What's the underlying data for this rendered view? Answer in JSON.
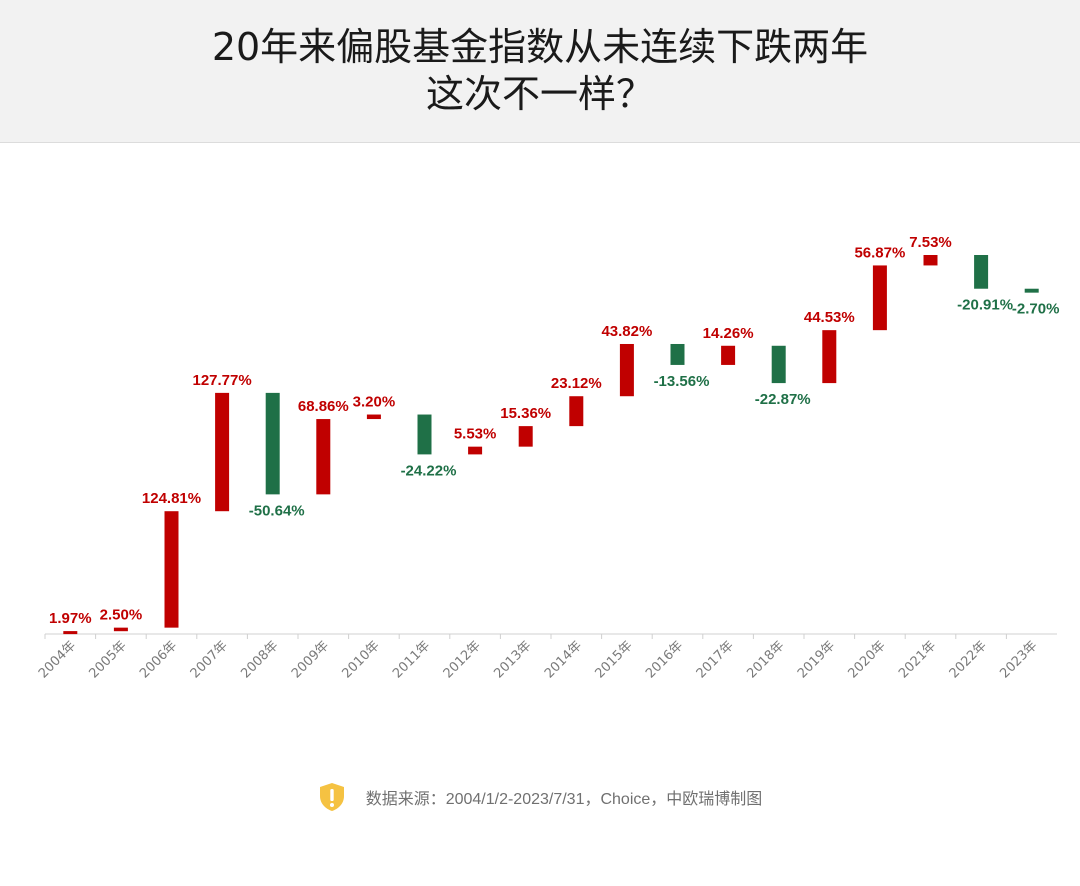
{
  "header": {
    "title_line1": "20年来偏股基金指数从未连续下跌两年",
    "title_line2": "这次不一样？"
  },
  "chart_data": {
    "type": "waterfall",
    "title": "20年来偏股基金指数从未连续下跌两年 这次不一样？",
    "categories": [
      "2004年",
      "2005年",
      "2006年",
      "2007年",
      "2008年",
      "2009年",
      "2010年",
      "2011年",
      "2012年",
      "2013年",
      "2014年",
      "2015年",
      "2016年",
      "2017年",
      "2018年",
      "2019年",
      "2020年",
      "2021年",
      "2022年",
      "2023年"
    ],
    "labels": [
      "1.97%",
      "2.50%",
      "124.81%",
      "127.77%",
      "-50.64%",
      "68.86%",
      "3.20%",
      "-24.22%",
      "5.53%",
      "15.36%",
      "23.12%",
      "43.82%",
      "-13.56%",
      "14.26%",
      "-22.87%",
      "44.53%",
      "56.87%",
      "7.53%",
      "-20.91%",
      "-2.70%"
    ],
    "values": [
      1.97,
      2.5,
      124.81,
      127.77,
      -50.64,
      68.86,
      3.2,
      -24.22,
      5.53,
      15.36,
      23.12,
      43.82,
      -13.56,
      14.26,
      -22.87,
      44.53,
      56.87,
      7.53,
      -20.91,
      -2.7
    ],
    "positive_color": "#c00000",
    "negative_color": "#1f7047",
    "xlabel": "",
    "ylabel": ""
  },
  "footer": {
    "icon": "shield-exclamation-icon",
    "icon_color": "#f5c242",
    "source": "数据来源：2004/1/2-2023/7/31，Choice，中欧瑞博制图"
  }
}
